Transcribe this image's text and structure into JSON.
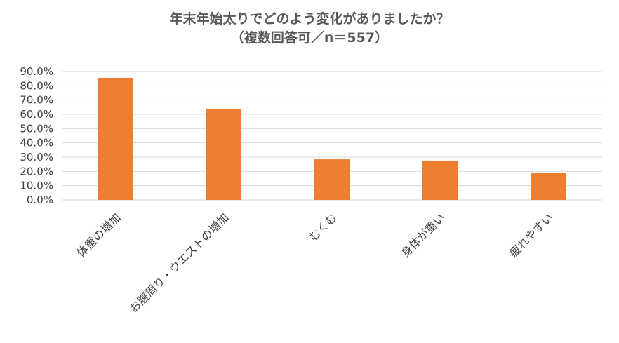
{
  "chart_data": {
    "type": "bar",
    "title": "年末年始太りでどのよう変化がありましたか？",
    "subtitle": "（複数回答可／n＝557）",
    "categories": [
      "体重の増加",
      "お腹周り・ウエストの増加",
      "むくむ",
      "身体が重い",
      "疲れやすい"
    ],
    "values": [
      85.6,
      63.9,
      28.5,
      27.6,
      18.9
    ],
    "ylim": [
      0,
      90
    ],
    "yticks": [
      "0.0%",
      "10.0%",
      "20.0%",
      "30.0%",
      "40.0%",
      "50.0%",
      "60.0%",
      "70.0%",
      "80.0%",
      "90.0%"
    ],
    "grid": true,
    "bar_color": "#ed7d31",
    "grid_color": "#d9d9d9"
  }
}
